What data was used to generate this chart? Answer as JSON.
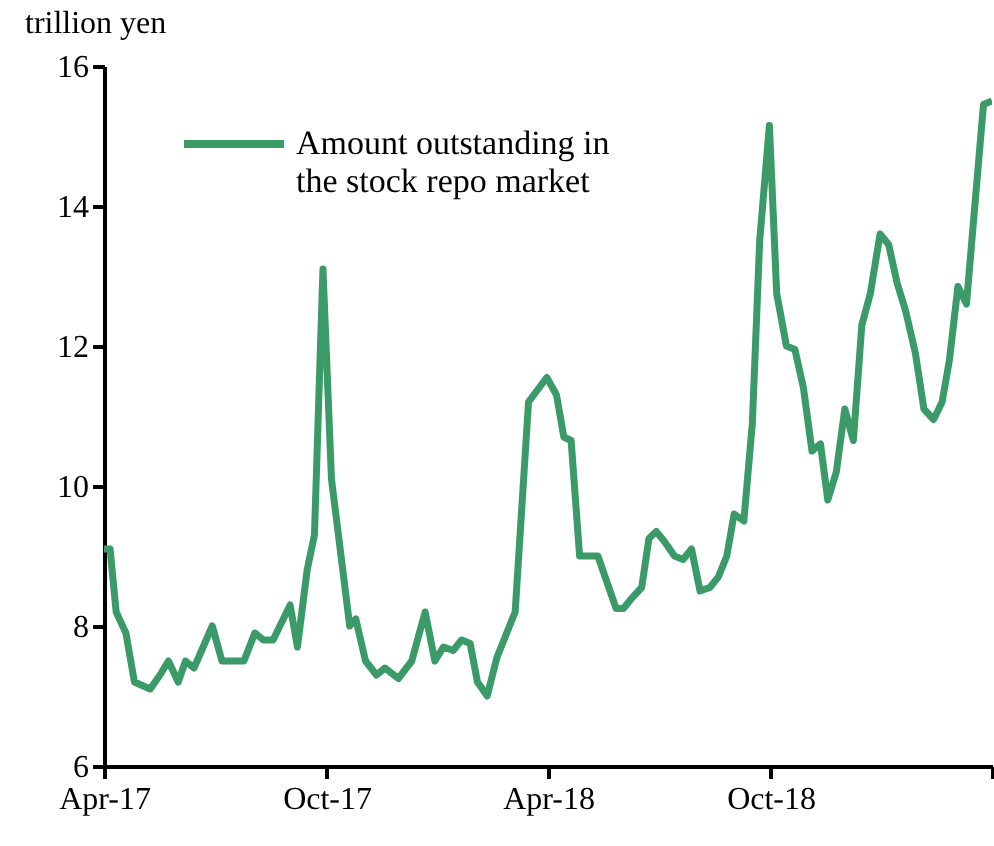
{
  "chart_data": {
    "type": "line",
    "ylabel": "trillion yen",
    "x": [
      "2017-04-01",
      "2017-04-06",
      "2017-04-11",
      "2017-04-19",
      "2017-04-26",
      "2017-05-09",
      "2017-05-17",
      "2017-05-24",
      "2017-06-01",
      "2017-06-07",
      "2017-06-14",
      "2017-06-29",
      "2017-07-07",
      "2017-07-25",
      "2017-08-03",
      "2017-08-10",
      "2017-08-18",
      "2017-09-01",
      "2017-09-07",
      "2017-09-15",
      "2017-09-21",
      "2017-09-28",
      "2017-10-05",
      "2017-10-20",
      "2017-10-25",
      "2017-11-02",
      "2017-11-11",
      "2017-11-18",
      "2017-11-29",
      "2017-12-10",
      "2017-12-21",
      "2017-12-29",
      "2018-01-05",
      "2018-01-13",
      "2018-01-20",
      "2018-01-27",
      "2018-02-02",
      "2018-02-10",
      "2018-02-18",
      "2018-03-05",
      "2018-03-16",
      "2018-03-31",
      "2018-04-08",
      "2018-04-14",
      "2018-04-20",
      "2018-04-27",
      "2018-05-12",
      "2018-05-27",
      "2018-06-02",
      "2018-06-09",
      "2018-06-17",
      "2018-06-23",
      "2018-06-29",
      "2018-07-06",
      "2018-07-14",
      "2018-07-21",
      "2018-07-28",
      "2018-08-04",
      "2018-08-12",
      "2018-08-19",
      "2018-08-26",
      "2018-09-01",
      "2018-09-09",
      "2018-09-16",
      "2018-09-22",
      "2018-09-30",
      "2018-10-06",
      "2018-10-14",
      "2018-10-21",
      "2018-10-28",
      "2018-11-04",
      "2018-11-11",
      "2018-11-17",
      "2018-11-24",
      "2018-12-01",
      "2018-12-08",
      "2018-12-15",
      "2018-12-22",
      "2018-12-30",
      "2019-01-06",
      "2019-01-13",
      "2019-01-20",
      "2019-01-28",
      "2019-02-04",
      "2019-02-12",
      "2019-02-19",
      "2019-02-25",
      "2019-03-04",
      "2019-03-11",
      "2019-03-25",
      "2019-04-01"
    ],
    "series": [
      {
        "name": "Amount outstanding in the stock repo market",
        "color": "#3a9a68",
        "values": [
          9.1,
          9.1,
          8.2,
          7.9,
          7.2,
          7.1,
          7.3,
          7.5,
          7.2,
          7.5,
          7.4,
          8.0,
          7.5,
          7.5,
          7.9,
          7.8,
          7.8,
          8.3,
          7.7,
          8.8,
          9.3,
          13.1,
          10.1,
          8.0,
          8.1,
          7.5,
          7.3,
          7.4,
          7.25,
          7.5,
          8.2,
          7.5,
          7.7,
          7.65,
          7.8,
          7.75,
          7.2,
          7.0,
          7.55,
          8.2,
          11.2,
          11.55,
          11.3,
          10.7,
          10.65,
          9.0,
          9.0,
          8.25,
          8.25,
          8.4,
          8.55,
          9.25,
          9.35,
          9.2,
          9.0,
          8.95,
          9.1,
          8.5,
          8.55,
          8.7,
          9.0,
          9.6,
          9.5,
          10.9,
          13.5,
          15.15,
          12.75,
          12.0,
          11.95,
          11.4,
          10.5,
          10.6,
          9.8,
          10.2,
          11.1,
          10.65,
          12.3,
          12.75,
          13.6,
          13.45,
          12.9,
          12.5,
          11.9,
          11.1,
          10.95,
          11.2,
          11.8,
          12.85,
          12.6,
          15.45,
          15.5
        ]
      }
    ],
    "xlim": [
      "2017-04-01",
      "2019-04-01"
    ],
    "xticks": [
      {
        "value": "2017-04-01",
        "label": "Apr-17"
      },
      {
        "value": "2017-10-01",
        "label": "Oct-17"
      },
      {
        "value": "2018-04-01",
        "label": "Apr-18"
      },
      {
        "value": "2018-10-01",
        "label": "Oct-18"
      },
      {
        "value": "2019-04-01",
        "label": null
      }
    ],
    "ylim": [
      6,
      16
    ],
    "yticks": [
      6,
      8,
      10,
      12,
      14,
      16
    ],
    "grid": false,
    "legend": "top left",
    "marker": "none",
    "line_style": "solid"
  }
}
